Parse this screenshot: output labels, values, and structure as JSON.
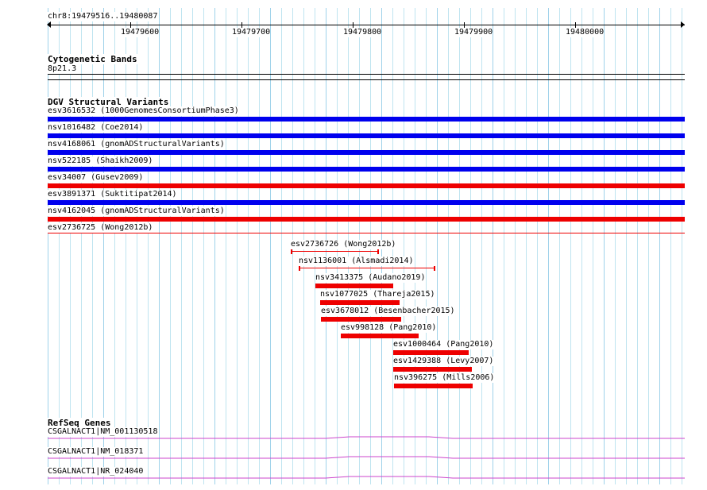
{
  "ruler": {
    "coords": "chr8:19479516..19480087",
    "ticks": [
      "19479600",
      "19479700",
      "19479800",
      "19479900",
      "19480000"
    ]
  },
  "cytoband": {
    "title": "Cytogenetic Bands",
    "band": "8p21.3"
  },
  "dgv": {
    "title": "DGV Structural Variants",
    "full_span": [
      {
        "label": "esv3616532 (1000GenomesConsortiumPhase3)",
        "color": "#0000ee"
      },
      {
        "label": "nsv1016482 (Coe2014)",
        "color": "#0000ee"
      },
      {
        "label": "nsv4168061 (gnomADStructuralVariants)",
        "color": "#0000ee"
      },
      {
        "label": "nsv522185 (Shaikh2009)",
        "color": "#0000ee"
      },
      {
        "label": "esv34007 (Gusev2009)",
        "color": "#ee0000"
      },
      {
        "label": "esv3891371 (Suktitipat2014)",
        "color": "#0000ee"
      },
      {
        "label": "nsv4162045 (gnomADStructuralVariants)",
        "color": "#ee0000"
      },
      {
        "label": "esv2736725 (Wong2012b)",
        "color": "#ee0000"
      }
    ],
    "local": [
      {
        "label": "esv2736726 (Wong2012b)",
        "color": "#ee0000",
        "style": "interval"
      },
      {
        "label": "nsv1136001 (Alsmadi2014)",
        "color": "#ee0000",
        "style": "interval"
      },
      {
        "label": "nsv3413375 (Audano2019)",
        "color": "#ee0000",
        "style": "bar"
      },
      {
        "label": "nsv1077025 (Thareja2015)",
        "color": "#ee0000",
        "style": "bar"
      },
      {
        "label": "esv3678012 (Besenbacher2015)",
        "color": "#ee0000",
        "style": "bar"
      },
      {
        "label": "esv998128 (Pang2010)",
        "color": "#ee0000",
        "style": "bar"
      },
      {
        "label": "esv1000464 (Pang2010)",
        "color": "#ee0000",
        "style": "bar"
      },
      {
        "label": "esv1429388 (Levy2007)",
        "color": "#ee0000",
        "style": "bar"
      },
      {
        "label": "nsv396275 (Mills2006)",
        "color": "#ee0000",
        "style": "bar"
      }
    ]
  },
  "refseq": {
    "title": "RefSeq Genes",
    "genes": [
      {
        "label": "CSGALNACT1|NM_001130518",
        "color": "#cc44cc"
      },
      {
        "label": "CSGALNACT1|NM_018371",
        "color": "#cc44cc"
      },
      {
        "label": "CSGALNACT1|NR_024040",
        "color": "#cc44cc"
      }
    ]
  }
}
